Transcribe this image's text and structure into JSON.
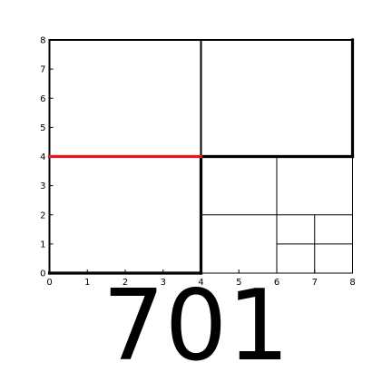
{
  "figure": {
    "domain": {
      "x": [
        0,
        8
      ],
      "y": [
        0,
        8
      ]
    },
    "x_ticks": [
      "0",
      "1",
      "2",
      "3",
      "4",
      "5",
      "6",
      "7",
      "8"
    ],
    "y_ticks": [
      "0",
      "1",
      "2",
      "3",
      "4",
      "5",
      "6",
      "7",
      "8"
    ],
    "colors": {
      "grid_line": "#000000",
      "highlight": "#e41a1c"
    },
    "segments": [
      {
        "from": [
          0,
          0
        ],
        "to": [
          0,
          8
        ],
        "weight": "medium"
      },
      {
        "from": [
          0,
          8
        ],
        "to": [
          8,
          8
        ],
        "weight": "medium"
      },
      {
        "from": [
          8,
          4
        ],
        "to": [
          8,
          8
        ],
        "weight": "heavy"
      },
      {
        "from": [
          0,
          0
        ],
        "to": [
          4,
          0
        ],
        "weight": "heavy"
      },
      {
        "from": [
          4,
          4
        ],
        "to": [
          4,
          8
        ],
        "weight": "medium"
      },
      {
        "from": [
          4,
          0
        ],
        "to": [
          4,
          4
        ],
        "weight": "heavy"
      },
      {
        "from": [
          4,
          4
        ],
        "to": [
          8,
          4
        ],
        "weight": "heavy"
      },
      {
        "from": [
          0,
          4
        ],
        "to": [
          4,
          4
        ],
        "weight": "heavy",
        "color": "highlight"
      },
      {
        "from": [
          4,
          0
        ],
        "to": [
          8,
          0
        ],
        "weight": "thin"
      },
      {
        "from": [
          8,
          0
        ],
        "to": [
          8,
          4
        ],
        "weight": "thin"
      },
      {
        "from": [
          6,
          0
        ],
        "to": [
          6,
          4
        ],
        "weight": "thin"
      },
      {
        "from": [
          4,
          2
        ],
        "to": [
          8,
          2
        ],
        "weight": "thin"
      },
      {
        "from": [
          7,
          0
        ],
        "to": [
          7,
          2
        ],
        "weight": "thin"
      },
      {
        "from": [
          6,
          1
        ],
        "to": [
          8,
          1
        ],
        "weight": "thin"
      }
    ]
  },
  "caption": "701"
}
